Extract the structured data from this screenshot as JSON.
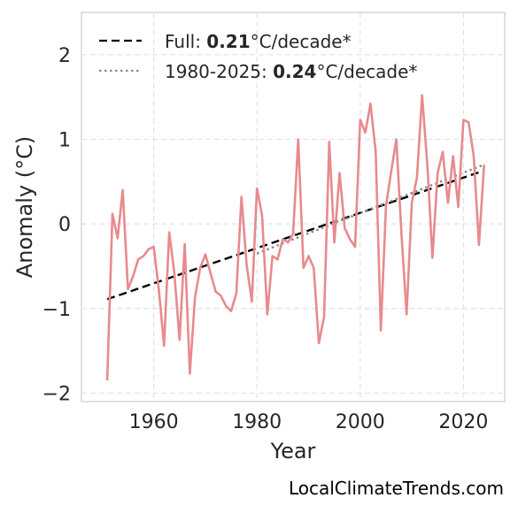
{
  "chart_data": {
    "type": "line",
    "xlabel": "Year",
    "ylabel": "Anomaly (°C)",
    "xlim": [
      1946,
      2028
    ],
    "ylim": [
      -2.1,
      2.5
    ],
    "x_ticks": [
      "1960",
      "1980",
      "2000",
      "2020"
    ],
    "y_ticks": [
      "−2",
      "−1",
      "0",
      "1",
      "2"
    ],
    "grid": true,
    "legend_position": "top-left",
    "series": [
      {
        "color": "#e88a8e",
        "x": [
          1951,
          1952,
          1953,
          1954,
          1955,
          1956,
          1957,
          1958,
          1959,
          1960,
          1961,
          1962,
          1963,
          1964,
          1965,
          1966,
          1967,
          1968,
          1969,
          1970,
          1971,
          1972,
          1973,
          1974,
          1975,
          1976,
          1977,
          1978,
          1979,
          1980,
          1981,
          1982,
          1983,
          1984,
          1985,
          1986,
          1987,
          1988,
          1989,
          1990,
          1991,
          1992,
          1993,
          1994,
          1995,
          1996,
          1997,
          1998,
          1999,
          2000,
          2001,
          2002,
          2003,
          2004,
          2005,
          2006,
          2007,
          2008,
          2009,
          2010,
          2011,
          2012,
          2013,
          2014,
          2015,
          2016,
          2017,
          2018,
          2019,
          2020,
          2021,
          2022,
          2023,
          2024
        ],
        "y": [
          -1.85,
          0.12,
          -0.17,
          0.4,
          -0.77,
          -0.62,
          -0.42,
          -0.38,
          -0.3,
          -0.27,
          -0.78,
          -1.44,
          -0.1,
          -0.58,
          -1.37,
          -0.24,
          -1.77,
          -0.87,
          -0.52,
          -0.36,
          -0.58,
          -0.8,
          -0.85,
          -0.97,
          -1.03,
          -0.82,
          0.32,
          -0.48,
          -0.92,
          0.42,
          0.1,
          -1.07,
          -0.38,
          -0.42,
          -0.18,
          -0.22,
          -0.12,
          1.0,
          -0.52,
          -0.38,
          -0.52,
          -1.41,
          -1.1,
          0.97,
          -0.22,
          0.6,
          -0.05,
          -0.18,
          -0.27,
          1.23,
          1.08,
          1.42,
          0.85,
          -1.26,
          0.21,
          0.62,
          1.0,
          -0.12,
          -1.07,
          0.25,
          0.55,
          1.52,
          0.7,
          -0.4,
          0.6,
          0.85,
          0.25,
          0.8,
          0.2,
          1.23,
          1.2,
          0.8,
          -0.25,
          0.7
        ]
      }
    ],
    "trend_full": {
      "x": [
        1951,
        2024
      ],
      "y": [
        -0.89,
        0.63
      ],
      "color": "#000000"
    },
    "trend_recent": {
      "x": [
        1980,
        2024
      ],
      "y": [
        -0.35,
        0.7
      ],
      "color": "#888888"
    },
    "legend": [
      {
        "prefix": "Full: ",
        "value": "0.21",
        "suffix": "°C/decade*",
        "style": "dashed",
        "color": "#000000"
      },
      {
        "prefix": "1980-2025: ",
        "value": "0.24",
        "suffix": "°C/decade*",
        "style": "dotted",
        "color": "#888888"
      }
    ]
  },
  "credit": "LocalClimateTrends.com"
}
